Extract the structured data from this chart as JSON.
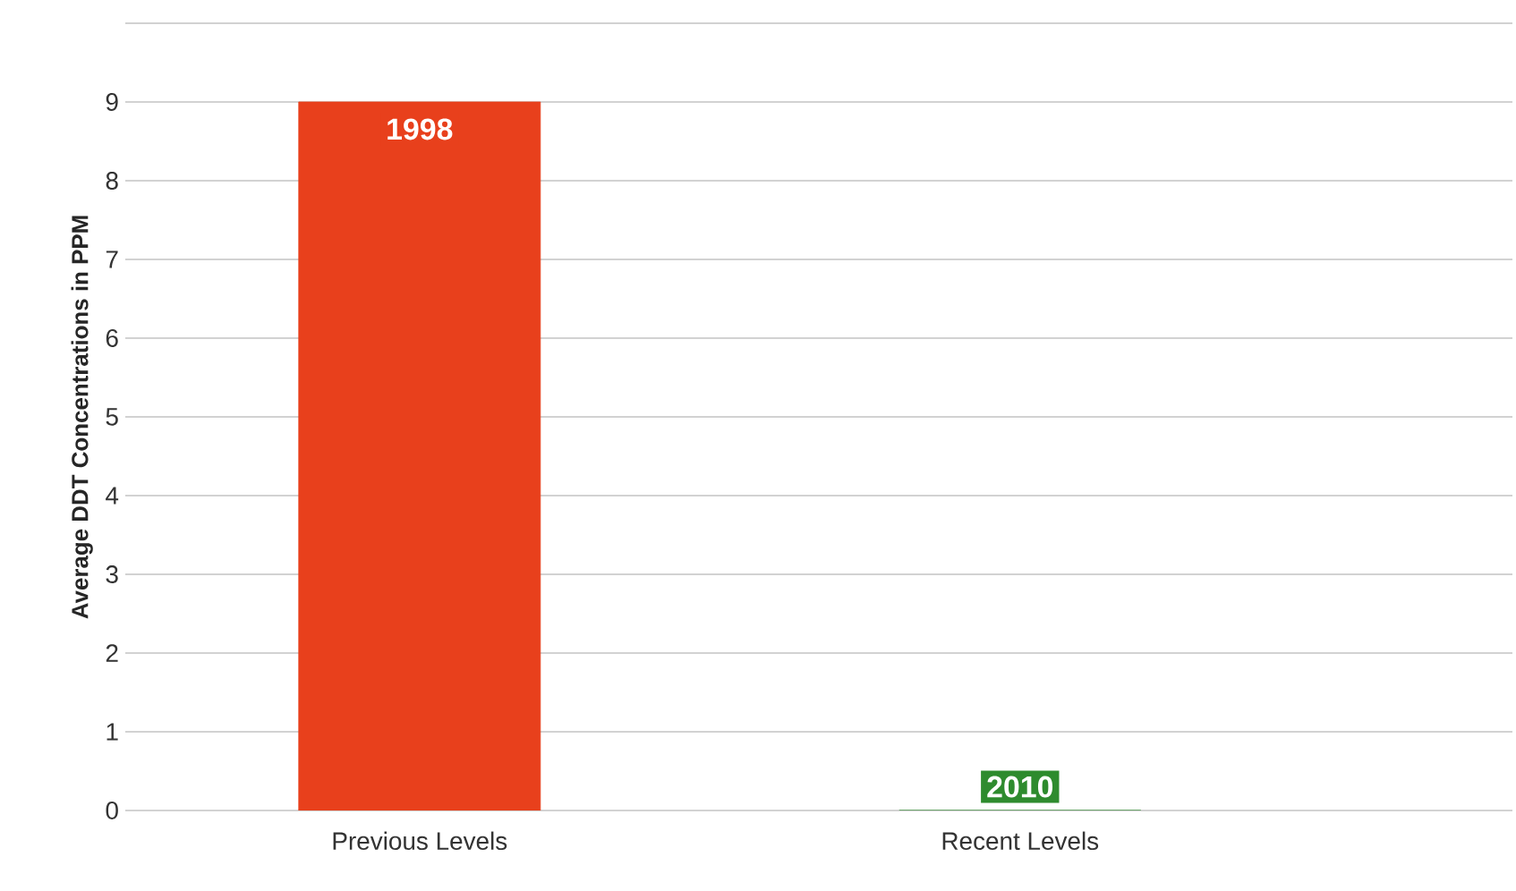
{
  "chart_data": {
    "type": "bar",
    "ylabel": "Average DDT Concentrations in PPM",
    "categories": [
      "Previous Levels",
      "Recent Levels"
    ],
    "values": [
      9,
      0
    ],
    "colors": [
      "#e8401c",
      "#2e8b2e"
    ],
    "ylim": [
      0,
      10
    ],
    "yticks": [
      0,
      1,
      2,
      3,
      4,
      5,
      6,
      7,
      8,
      9,
      {
        "value": 10,
        "label": null
      }
    ],
    "grid": "y",
    "annotations": [
      {
        "text": "1998",
        "x": "Previous Levels",
        "y": 9
      },
      {
        "text": "2010",
        "x": "Recent Levels",
        "y": 0
      }
    ]
  }
}
